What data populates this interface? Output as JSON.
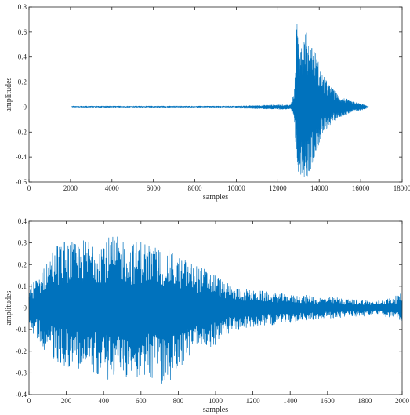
{
  "chart_data": [
    {
      "type": "line",
      "title": "",
      "xlabel": "samples",
      "ylabel": "amplitudes",
      "xlim": [
        0,
        18000
      ],
      "ylim": [
        -0.6,
        0.8
      ],
      "xticks": [
        0,
        2000,
        4000,
        6000,
        8000,
        10000,
        12000,
        14000,
        16000,
        18000
      ],
      "xtick_labels": [
        "0",
        "2000",
        "4000",
        "6000",
        "8000",
        "10000",
        "12000",
        "14000",
        "16000",
        "18000"
      ],
      "yticks": [
        -0.6,
        -0.4,
        -0.2,
        0,
        0.2,
        0.4,
        0.6,
        0.8
      ],
      "ytick_labels": [
        "-0.6",
        "-0.4",
        "-0.2",
        "0",
        "0.2",
        "0.4",
        "0.6",
        "0.8"
      ],
      "grid": false,
      "line_color": "#0072BD",
      "series": [
        {
          "x": [
            0,
            2000,
            2100,
            6000,
            10000,
            12000,
            12600,
            12800,
            12900,
            13000,
            13200,
            13400,
            13600,
            13800,
            14000,
            14200,
            14500,
            14800,
            15000,
            15500,
            16000,
            16300,
            16400
          ],
          "max": [
            0,
            0,
            0.01,
            0.01,
            0.01,
            0.02,
            0.02,
            0.12,
            0.68,
            0.66,
            0.62,
            0.6,
            0.55,
            0.45,
            0.35,
            0.25,
            0.18,
            0.12,
            0.09,
            0.05,
            0.03,
            0.01,
            0
          ],
          "min": [
            0,
            0,
            -0.01,
            -0.01,
            -0.01,
            -0.02,
            -0.02,
            -0.1,
            -0.45,
            -0.53,
            -0.55,
            -0.57,
            -0.5,
            -0.4,
            -0.3,
            -0.22,
            -0.15,
            -0.1,
            -0.08,
            -0.05,
            -0.03,
            -0.01,
            0
          ]
        }
      ]
    },
    {
      "type": "line",
      "title": "",
      "xlabel": "samples",
      "ylabel": "amplitudes",
      "xlim": [
        0,
        2000
      ],
      "ylim": [
        -0.4,
        0.4
      ],
      "xticks": [
        0,
        200,
        400,
        600,
        800,
        1000,
        1200,
        1400,
        1600,
        1800,
        2000
      ],
      "xtick_labels": [
        "0",
        "200",
        "400",
        "600",
        "800",
        "1000",
        "1200",
        "1400",
        "1600",
        "1800",
        "2000"
      ],
      "yticks": [
        -0.4,
        -0.3,
        -0.2,
        -0.1,
        0,
        0.1,
        0.2,
        0.3,
        0.4
      ],
      "ytick_labels": [
        "-0.4",
        "-0.3",
        "-0.2",
        "-0.1",
        "0",
        "0.1",
        "0.2",
        "0.3",
        "0.4"
      ],
      "grid": false,
      "line_color": "#0072BD",
      "series": [
        {
          "x": [
            0,
            50,
            100,
            150,
            200,
            250,
            300,
            350,
            400,
            450,
            500,
            550,
            600,
            650,
            700,
            750,
            800,
            850,
            900,
            950,
            1000,
            1050,
            1100,
            1150,
            1200,
            1250,
            1300,
            1350,
            1400,
            1450,
            1500,
            1550,
            1600,
            1650,
            1700,
            1750,
            1800,
            1850,
            1900,
            1950,
            2000
          ],
          "max": [
            0.1,
            0.15,
            0.25,
            0.3,
            0.32,
            0.3,
            0.32,
            0.33,
            0.33,
            0.33,
            0.33,
            0.3,
            0.32,
            0.3,
            0.28,
            0.27,
            0.25,
            0.22,
            0.2,
            0.18,
            0.16,
            0.12,
            0.1,
            0.09,
            0.08,
            0.08,
            0.07,
            0.07,
            0.06,
            0.06,
            0.06,
            0.05,
            0.05,
            0.05,
            0.04,
            0.04,
            0.04,
            0.03,
            0.04,
            0.05,
            0.07
          ],
          "min": [
            -0.1,
            -0.15,
            -0.22,
            -0.25,
            -0.28,
            -0.27,
            -0.3,
            -0.3,
            -0.35,
            -0.32,
            -0.32,
            -0.33,
            -0.32,
            -0.33,
            -0.38,
            -0.35,
            -0.28,
            -0.25,
            -0.22,
            -0.2,
            -0.17,
            -0.13,
            -0.11,
            -0.1,
            -0.09,
            -0.08,
            -0.08,
            -0.07,
            -0.07,
            -0.06,
            -0.06,
            -0.05,
            -0.05,
            -0.05,
            -0.04,
            -0.04,
            -0.04,
            -0.03,
            -0.04,
            -0.05,
            -0.06
          ]
        }
      ]
    }
  ]
}
